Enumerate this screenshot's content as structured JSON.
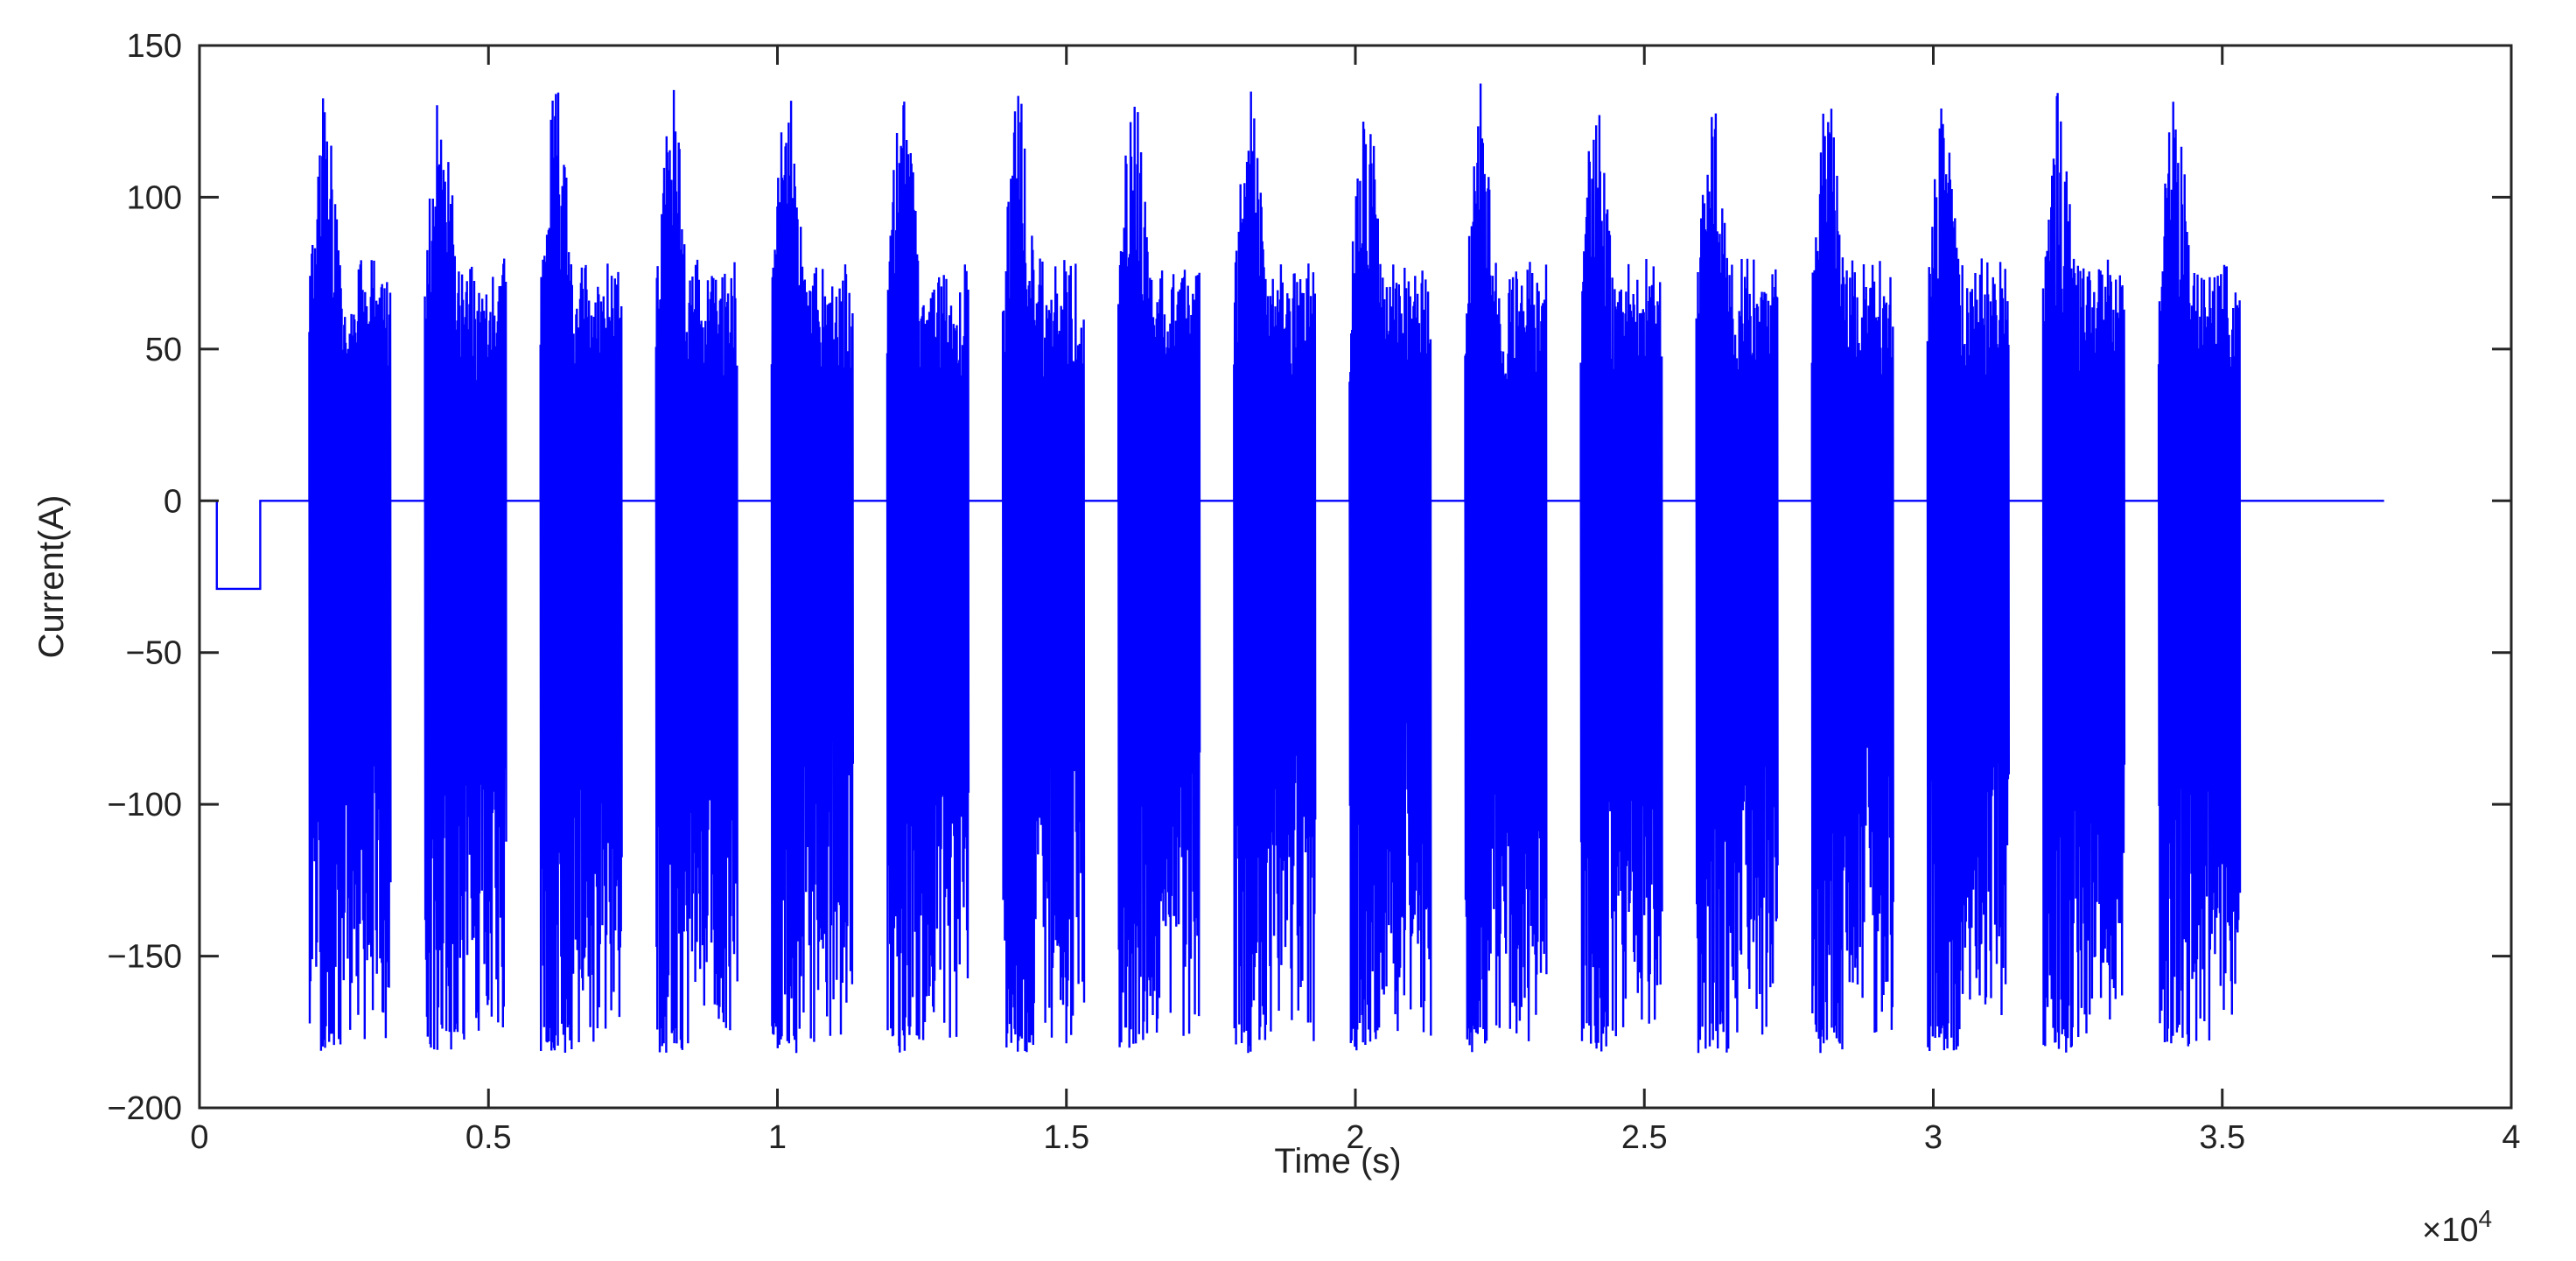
{
  "chart_data": {
    "type": "line",
    "title": "",
    "xlabel": "Time (s)",
    "ylabel": "Current(A)",
    "x_exponent_label": "×10",
    "x_exponent_power": "4",
    "x_scale_factor": 10000,
    "xlim": [
      0,
      40000
    ],
    "ylim": [
      -200,
      150
    ],
    "x_ticks": [
      {
        "value": 0,
        "label": "0"
      },
      {
        "value": 5000,
        "label": "0.5"
      },
      {
        "value": 10000,
        "label": "1"
      },
      {
        "value": 15000,
        "label": "1.5"
      },
      {
        "value": 20000,
        "label": "2"
      },
      {
        "value": 25000,
        "label": "2.5"
      },
      {
        "value": 30000,
        "label": "3"
      },
      {
        "value": 35000,
        "label": "3.5"
      },
      {
        "value": 40000,
        "label": "4"
      }
    ],
    "y_ticks": [
      {
        "value": 150,
        "label": "150"
      },
      {
        "value": 100,
        "label": "100"
      },
      {
        "value": 50,
        "label": "50"
      },
      {
        "value": 0,
        "label": "0"
      },
      {
        "value": -50,
        "label": "−50"
      },
      {
        "value": -100,
        "label": "−100"
      },
      {
        "value": -150,
        "label": "−150"
      },
      {
        "value": -200,
        "label": "−200"
      }
    ],
    "grid": false,
    "legend": "none",
    "series": [
      {
        "color": "#0000ff",
        "baseline": 0,
        "initial_pulse": {
          "start": 300,
          "end": 1050,
          "value": -29
        },
        "burst_period": 2000,
        "burst_count": 17,
        "first_burst_start": 1900,
        "burst_duration": 1400,
        "burst_max": 138,
        "burst_min": -182,
        "data_end": 37800
      }
    ]
  }
}
